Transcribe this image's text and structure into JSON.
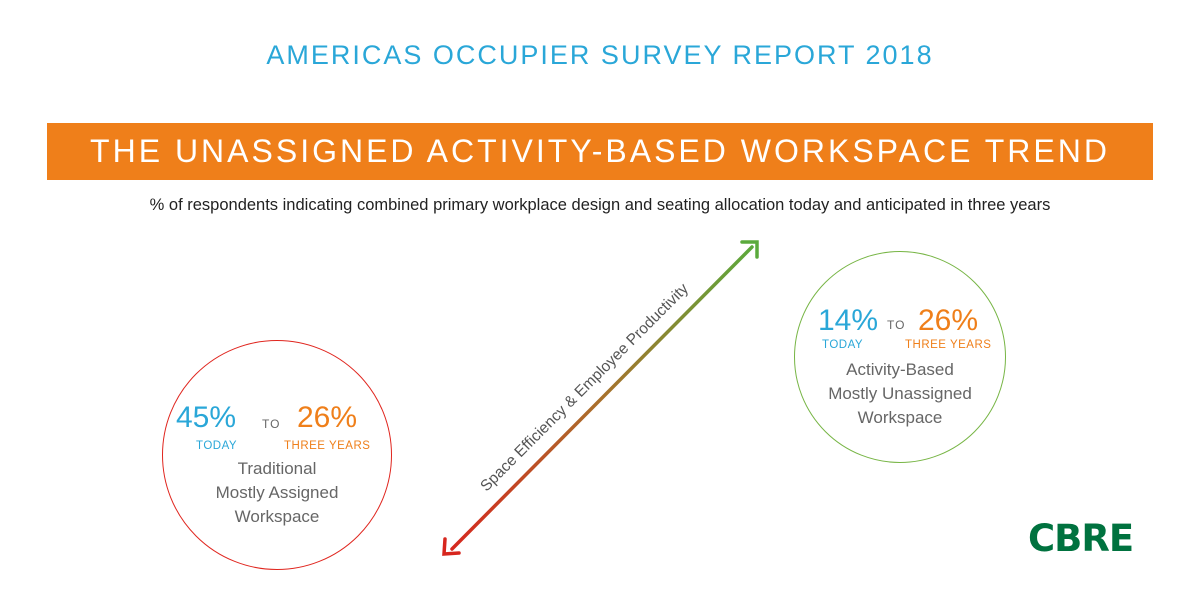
{
  "header": {
    "report_title": "AMERICAS OCCUPIER SURVEY REPORT 2018",
    "banner_title": "THE UNASSIGNED ACTIVITY-BASED WORKSPACE TREND",
    "subtitle": "% of respondents indicating combined primary workplace design and seating allocation today and anticipated in three years"
  },
  "axis": {
    "label": "Space Efficiency & Employee Productivity",
    "low_color": "#d7261e",
    "high_color": "#5aaa3c"
  },
  "traditional": {
    "today_value": "45%",
    "three_years_value": "26%",
    "to_word": "TO",
    "today_label": "TODAY",
    "three_years_label": "THREE YEARS",
    "desc_line1": "Traditional",
    "desc_line2": "Mostly Assigned",
    "desc_line3": "Workspace",
    "circle_color": "#e0261f"
  },
  "activity": {
    "today_value": "14%",
    "three_years_value": "26%",
    "to_word": "TO",
    "today_label": "TODAY",
    "three_years_label": "THREE YEARS",
    "desc_line1": "Activity-Based",
    "desc_line2": "Mostly Unassigned",
    "desc_line3": "Workspace",
    "circle_color": "#77b545"
  },
  "brand": {
    "logo_text": "CBRE",
    "logo_color": "#00723f",
    "accent_blue": "#2aa7d8",
    "accent_orange": "#ef7f1a"
  }
}
